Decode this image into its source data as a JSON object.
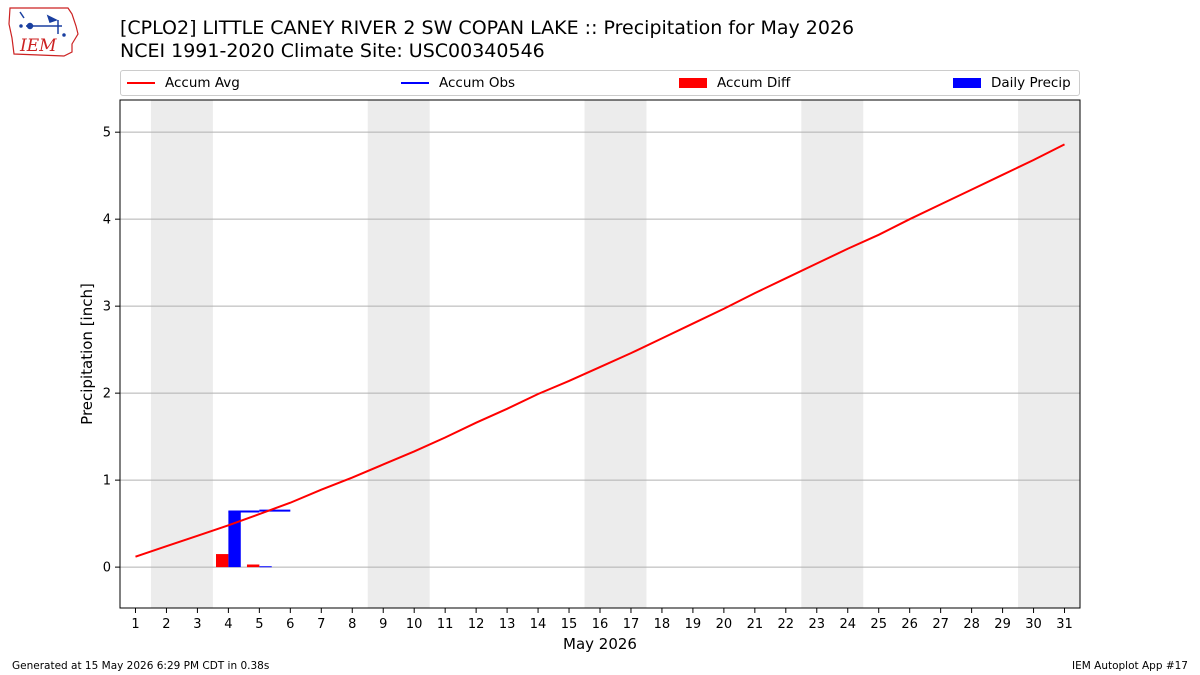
{
  "header": {
    "title_line1": "[CPLO2] LITTLE CANEY RIVER 2 SW COPAN LAKE :: Precipitation for May 2026",
    "title_line2": "NCEI 1991-2020 Climate Site: USC00340546",
    "logo_text": "IEM"
  },
  "legend": {
    "items": [
      {
        "label": "Accum Avg",
        "kind": "line",
        "color": "#ff0000"
      },
      {
        "label": "Accum Obs",
        "kind": "line",
        "color": "#0000ff"
      },
      {
        "label": "Accum Diff",
        "kind": "patch",
        "color": "#ff0000"
      },
      {
        "label": "Daily Precip",
        "kind": "patch",
        "color": "#0000ff"
      }
    ],
    "placement": "top, above plot, expanded"
  },
  "chart_data": {
    "type": "bar",
    "title": "[CPLO2] LITTLE CANEY RIVER 2 SW COPAN LAKE :: Precipitation for May 2026",
    "subtitle": "NCEI 1991-2020 Climate Site: USC00340546",
    "xlabel": "May 2026",
    "ylabel": "Precipitation [inch]",
    "xlim": [
      0.5,
      31.5
    ],
    "ylim": [
      -0.47,
      5.37
    ],
    "x_ticks": [
      1,
      2,
      3,
      4,
      5,
      6,
      7,
      8,
      9,
      10,
      11,
      12,
      13,
      14,
      15,
      16,
      17,
      18,
      19,
      20,
      21,
      22,
      23,
      24,
      25,
      26,
      27,
      28,
      29,
      30,
      31
    ],
    "y_ticks": [
      0,
      1,
      2,
      3,
      4,
      5
    ],
    "grid": "horizontal",
    "weekend_shading": [
      [
        2,
        3
      ],
      [
        9,
        10
      ],
      [
        16,
        17
      ],
      [
        23,
        24
      ],
      [
        30,
        31
      ]
    ],
    "series": [
      {
        "name": "Accum Avg",
        "type": "line",
        "color": "#ff0000",
        "x": [
          1,
          2,
          3,
          4,
          5,
          6,
          7,
          8,
          9,
          10,
          11,
          12,
          13,
          14,
          15,
          16,
          17,
          18,
          19,
          20,
          21,
          22,
          23,
          24,
          25,
          26,
          27,
          28,
          29,
          30,
          31
        ],
        "values": [
          0.12,
          0.24,
          0.36,
          0.48,
          0.61,
          0.74,
          0.89,
          1.03,
          1.18,
          1.33,
          1.49,
          1.66,
          1.82,
          1.99,
          2.14,
          2.3,
          2.46,
          2.63,
          2.8,
          2.97,
          3.15,
          3.32,
          3.49,
          3.66,
          3.82,
          4.0,
          4.17,
          4.34,
          4.51,
          4.68,
          4.86
        ]
      },
      {
        "name": "Accum Obs",
        "type": "step",
        "color": "#0000ff",
        "x": [
          4,
          5
        ],
        "values": [
          0.64,
          0.65
        ]
      },
      {
        "name": "Accum Diff",
        "type": "bar",
        "color": "#ff0000",
        "x": [
          4,
          5
        ],
        "values": [
          0.15,
          0.03
        ]
      },
      {
        "name": "Daily Precip",
        "type": "bar",
        "color": "#0000ff",
        "x": [
          4,
          5
        ],
        "values": [
          0.64,
          0.01
        ]
      }
    ]
  },
  "footer": {
    "left": "Generated at 15 May 2026 6:29 PM CDT in 0.38s",
    "right": "IEM Autoplot App #17"
  }
}
